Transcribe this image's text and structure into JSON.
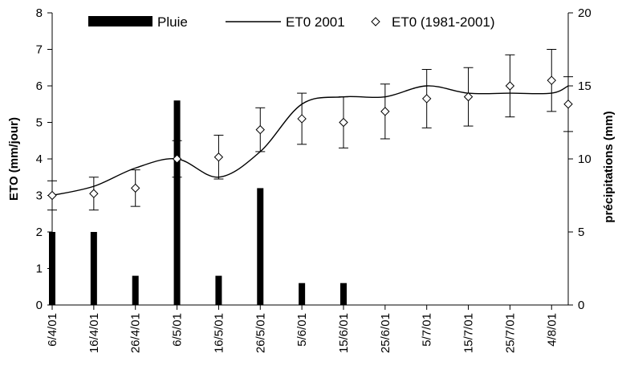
{
  "chart_data": {
    "type": "bar+line+scatter",
    "title": "",
    "categories": [
      "6/4/01",
      "16/4/01",
      "26/4/01",
      "6/5/01",
      "16/5/01",
      "26/5/01",
      "5/6/01",
      "15/6/01",
      "25/6/01",
      "5/7/01",
      "15/7/01",
      "25/7/01",
      "4/8/01"
    ],
    "ylabel_left": "ETO (mm/jour)",
    "ylabel_right": "précipitations (mm)",
    "ylim_left": [
      0,
      8
    ],
    "ylim_right": [
      0,
      20
    ],
    "yticks_left": [
      0,
      1,
      2,
      3,
      4,
      5,
      6,
      7,
      8
    ],
    "yticks_right": [
      0,
      5,
      10,
      15,
      20
    ],
    "legend": {
      "placement": "top",
      "items": [
        {
          "key": "rain",
          "label": "Pluie"
        },
        {
          "key": "et0_2001",
          "label": "ET0 2001"
        },
        {
          "key": "et0_hist",
          "label": "ET0 (1981-2001)"
        }
      ]
    },
    "series": [
      {
        "key": "rain",
        "name": "Pluie",
        "kind": "bar",
        "axis": "right",
        "color": "#000000",
        "points": [
          {
            "day": 0,
            "value": 5
          },
          {
            "day": 10,
            "value": 5
          },
          {
            "day": 20,
            "value": 2
          },
          {
            "day": 30,
            "value": 14
          },
          {
            "day": 40,
            "value": 2
          },
          {
            "day": 50,
            "value": 8
          },
          {
            "day": 60,
            "value": 1.5
          },
          {
            "day": 70,
            "value": 1.5
          }
        ]
      },
      {
        "key": "et0_2001",
        "name": "ET0 2001",
        "kind": "line",
        "axis": "left",
        "color": "#000000",
        "points": [
          {
            "day": 0,
            "value": 3.0
          },
          {
            "day": 10,
            "value": 3.25
          },
          {
            "day": 20,
            "value": 3.75
          },
          {
            "day": 30,
            "value": 4.0
          },
          {
            "day": 40,
            "value": 3.5
          },
          {
            "day": 50,
            "value": 4.2
          },
          {
            "day": 60,
            "value": 5.5
          },
          {
            "day": 70,
            "value": 5.7
          },
          {
            "day": 80,
            "value": 5.7
          },
          {
            "day": 90,
            "value": 6.0
          },
          {
            "day": 100,
            "value": 5.8
          },
          {
            "day": 110,
            "value": 5.8
          },
          {
            "day": 120,
            "value": 5.8
          },
          {
            "day": 124,
            "value": 6.0
          }
        ]
      },
      {
        "key": "et0_hist",
        "name": "ET0 (1981-2001)",
        "kind": "scatter",
        "axis": "left",
        "marker": "diamond",
        "color": "#000000",
        "points": [
          {
            "day": 0,
            "value": 3.0,
            "err": 0.4
          },
          {
            "day": 10,
            "value": 3.05,
            "err": 0.45
          },
          {
            "day": 20,
            "value": 3.2,
            "err": 0.5
          },
          {
            "day": 30,
            "value": 4.0,
            "err": 0.5
          },
          {
            "day": 40,
            "value": 4.05,
            "err": 0.6
          },
          {
            "day": 50,
            "value": 4.8,
            "err": 0.6
          },
          {
            "day": 60,
            "value": 5.1,
            "err": 0.7
          },
          {
            "day": 70,
            "value": 5.0,
            "err": 0.7
          },
          {
            "day": 80,
            "value": 5.3,
            "err": 0.75
          },
          {
            "day": 90,
            "value": 5.65,
            "err": 0.8
          },
          {
            "day": 100,
            "value": 5.7,
            "err": 0.8
          },
          {
            "day": 110,
            "value": 6.0,
            "err": 0.85
          },
          {
            "day": 120,
            "value": 6.15,
            "err": 0.85
          },
          {
            "day": 124,
            "value": 5.5,
            "err": 0.75
          }
        ]
      }
    ]
  }
}
